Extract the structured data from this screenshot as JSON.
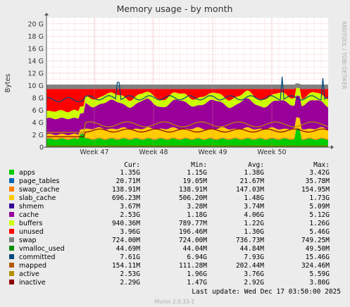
{
  "chart_data": {
    "type": "area",
    "title": "Memory usage - by month",
    "ylabel": "Bytes",
    "ylim": [
      0,
      21
    ],
    "y_ticks": [
      "0",
      "2 G",
      "4 G",
      "6 G",
      "8 G",
      "10 G",
      "12 G",
      "14 G",
      "16 G",
      "18 G",
      "20 G"
    ],
    "x_ticks": [
      "Week 47",
      "Week 48",
      "Week 49",
      "Week 50"
    ],
    "side_label": "RRDTOOL / TOBI OETIKER",
    "stacked_series": [
      "apps",
      "page_tables",
      "swap_cache",
      "slab_cache",
      "shmem",
      "cache",
      "buffers",
      "unused",
      "swap"
    ],
    "line_series": [
      "vmalloc_used",
      "committed",
      "mapped",
      "active",
      "inactive"
    ],
    "legend_headers": [
      "Cur:",
      "Min:",
      "Avg:",
      "Max:"
    ],
    "series": [
      {
        "name": "apps",
        "color": "#00cc00",
        "cur": "1.35G",
        "min": "1.15G",
        "avg": "1.38G",
        "max": "3.42G"
      },
      {
        "name": "page_tables",
        "color": "#0066b3",
        "cur": "20.71M",
        "min": "19.05M",
        "avg": "21.67M",
        "max": "35.78M"
      },
      {
        "name": "swap_cache",
        "color": "#ff8000",
        "cur": "138.91M",
        "min": "138.91M",
        "avg": "147.03M",
        "max": "154.95M"
      },
      {
        "name": "slab_cache",
        "color": "#ffcc00",
        "cur": "696.23M",
        "min": "506.20M",
        "avg": "1.48G",
        "max": "1.73G"
      },
      {
        "name": "shmem",
        "color": "#330099",
        "cur": "3.67M",
        "min": "3.28M",
        "avg": "3.74M",
        "max": "5.09M"
      },
      {
        "name": "cache",
        "color": "#990099",
        "cur": "2.53G",
        "min": "1.18G",
        "avg": "4.06G",
        "max": "5.12G"
      },
      {
        "name": "buffers",
        "color": "#ccff00",
        "cur": "940.36M",
        "min": "789.77M",
        "avg": "1.22G",
        "max": "1.26G"
      },
      {
        "name": "unused",
        "color": "#ff0000",
        "cur": "3.96G",
        "min": "196.46M",
        "avg": "1.30G",
        "max": "5.46G"
      },
      {
        "name": "swap",
        "color": "#808080",
        "cur": "724.00M",
        "min": "724.00M",
        "avg": "736.73M",
        "max": "749.25M"
      },
      {
        "name": "vmalloc_used",
        "color": "#008f00",
        "cur": "44.69M",
        "min": "44.04M",
        "avg": "44.84M",
        "max": "49.50M"
      },
      {
        "name": "committed",
        "color": "#00487d",
        "cur": "7.61G",
        "min": "6.94G",
        "avg": "7.93G",
        "max": "15.46G"
      },
      {
        "name": "mapped",
        "color": "#b35a00",
        "cur": "154.11M",
        "min": "111.28M",
        "avg": "202.44M",
        "max": "324.46M"
      },
      {
        "name": "active",
        "color": "#b38f00",
        "cur": "2.53G",
        "min": "1.96G",
        "avg": "3.76G",
        "max": "5.59G"
      },
      {
        "name": "inactive",
        "color": "#6b006b",
        "cur": "2.29G",
        "min": "1.47G",
        "avg": "2.92G",
        "max": "3.80G"
      }
    ]
  },
  "legend_swatch_colors": [
    "#00cc00",
    "#0066b3",
    "#ff8000",
    "#ffcc00",
    "#330099",
    "#990099",
    "#ccff00",
    "#ff0000",
    "#808080",
    "#008f00",
    "#00487d",
    "#b35a00",
    "#b38f00",
    "#8f0000"
  ],
  "stack_fill_colors": [
    "#00cc00",
    "#0066b3",
    "#ff8000",
    "#ffcc00",
    "#330099",
    "#990099",
    "#ccff00",
    "#ff0000",
    "#808080"
  ],
  "last_update": "Last update:  Wed Dec 17 03:50:00 2025",
  "munin_version": "Munin 2.0.33-1"
}
